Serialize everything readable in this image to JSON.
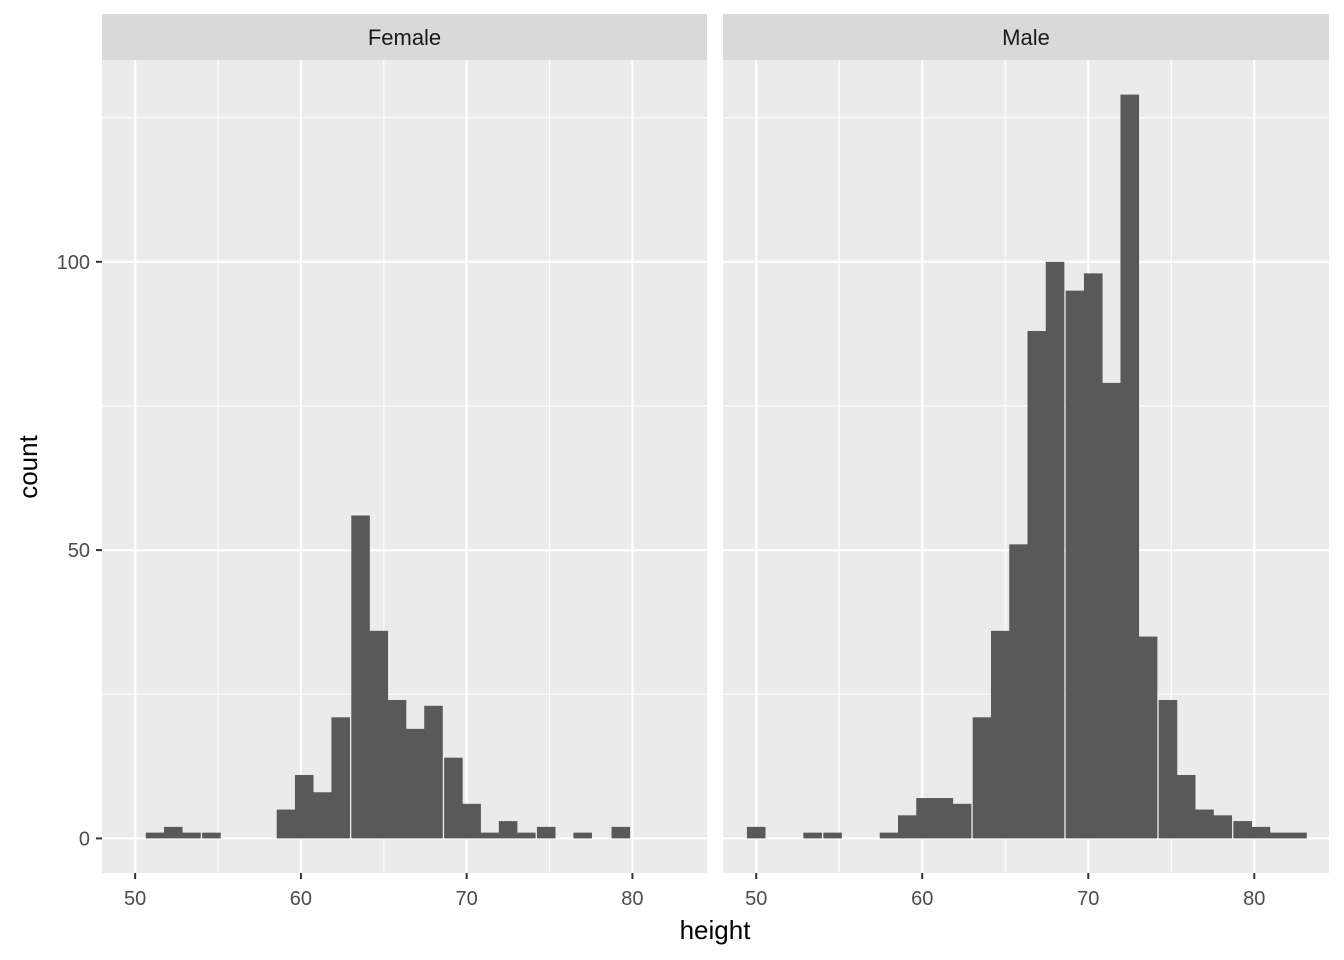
{
  "chart_data": {
    "type": "bar",
    "facet_by": "sex",
    "xlabel": "height",
    "ylabel": "count",
    "xlim": [
      48,
      84.5
    ],
    "ylim": [
      -6,
      135
    ],
    "x_ticks": [
      50,
      60,
      70,
      80
    ],
    "y_ticks": [
      0,
      50,
      100
    ],
    "grid": true,
    "bin_width": 1.12,
    "bar_color": "#595959",
    "panel_background": "#ebebeb",
    "strip_background": "#d9d9d9",
    "grid_color": "#ffffff",
    "panels": [
      {
        "name": "Female",
        "bins": [
          {
            "x": 51.2,
            "count": 1
          },
          {
            "x": 52.3,
            "count": 2
          },
          {
            "x": 53.4,
            "count": 1
          },
          {
            "x": 54.6,
            "count": 1
          },
          {
            "x": 59.1,
            "count": 5
          },
          {
            "x": 60.2,
            "count": 11
          },
          {
            "x": 61.3,
            "count": 8
          },
          {
            "x": 62.4,
            "count": 21
          },
          {
            "x": 63.6,
            "count": 56
          },
          {
            "x": 64.7,
            "count": 36
          },
          {
            "x": 65.8,
            "count": 24
          },
          {
            "x": 66.9,
            "count": 19
          },
          {
            "x": 68.0,
            "count": 23
          },
          {
            "x": 69.2,
            "count": 14
          },
          {
            "x": 70.3,
            "count": 6
          },
          {
            "x": 71.4,
            "count": 1
          },
          {
            "x": 72.5,
            "count": 3
          },
          {
            "x": 73.6,
            "count": 1
          },
          {
            "x": 74.8,
            "count": 2
          },
          {
            "x": 77.0,
            "count": 1
          },
          {
            "x": 79.3,
            "count": 2
          }
        ]
      },
      {
        "name": "Male",
        "bins": [
          {
            "x": 50.0,
            "count": 2
          },
          {
            "x": 53.4,
            "count": 1
          },
          {
            "x": 54.6,
            "count": 1
          },
          {
            "x": 58.0,
            "count": 1
          },
          {
            "x": 59.1,
            "count": 4
          },
          {
            "x": 60.2,
            "count": 7
          },
          {
            "x": 61.3,
            "count": 7
          },
          {
            "x": 62.4,
            "count": 6
          },
          {
            "x": 63.6,
            "count": 21
          },
          {
            "x": 64.7,
            "count": 36
          },
          {
            "x": 65.8,
            "count": 51
          },
          {
            "x": 66.9,
            "count": 88
          },
          {
            "x": 68.0,
            "count": 100
          },
          {
            "x": 69.2,
            "count": 95
          },
          {
            "x": 70.3,
            "count": 98
          },
          {
            "x": 71.4,
            "count": 79
          },
          {
            "x": 72.5,
            "count": 129
          },
          {
            "x": 73.6,
            "count": 35
          },
          {
            "x": 74.8,
            "count": 24
          },
          {
            "x": 75.9,
            "count": 11
          },
          {
            "x": 77.0,
            "count": 5
          },
          {
            "x": 78.1,
            "count": 4
          },
          {
            "x": 79.3,
            "count": 3
          },
          {
            "x": 80.4,
            "count": 2
          },
          {
            "x": 81.5,
            "count": 1
          },
          {
            "x": 82.6,
            "count": 1
          }
        ]
      }
    ]
  }
}
